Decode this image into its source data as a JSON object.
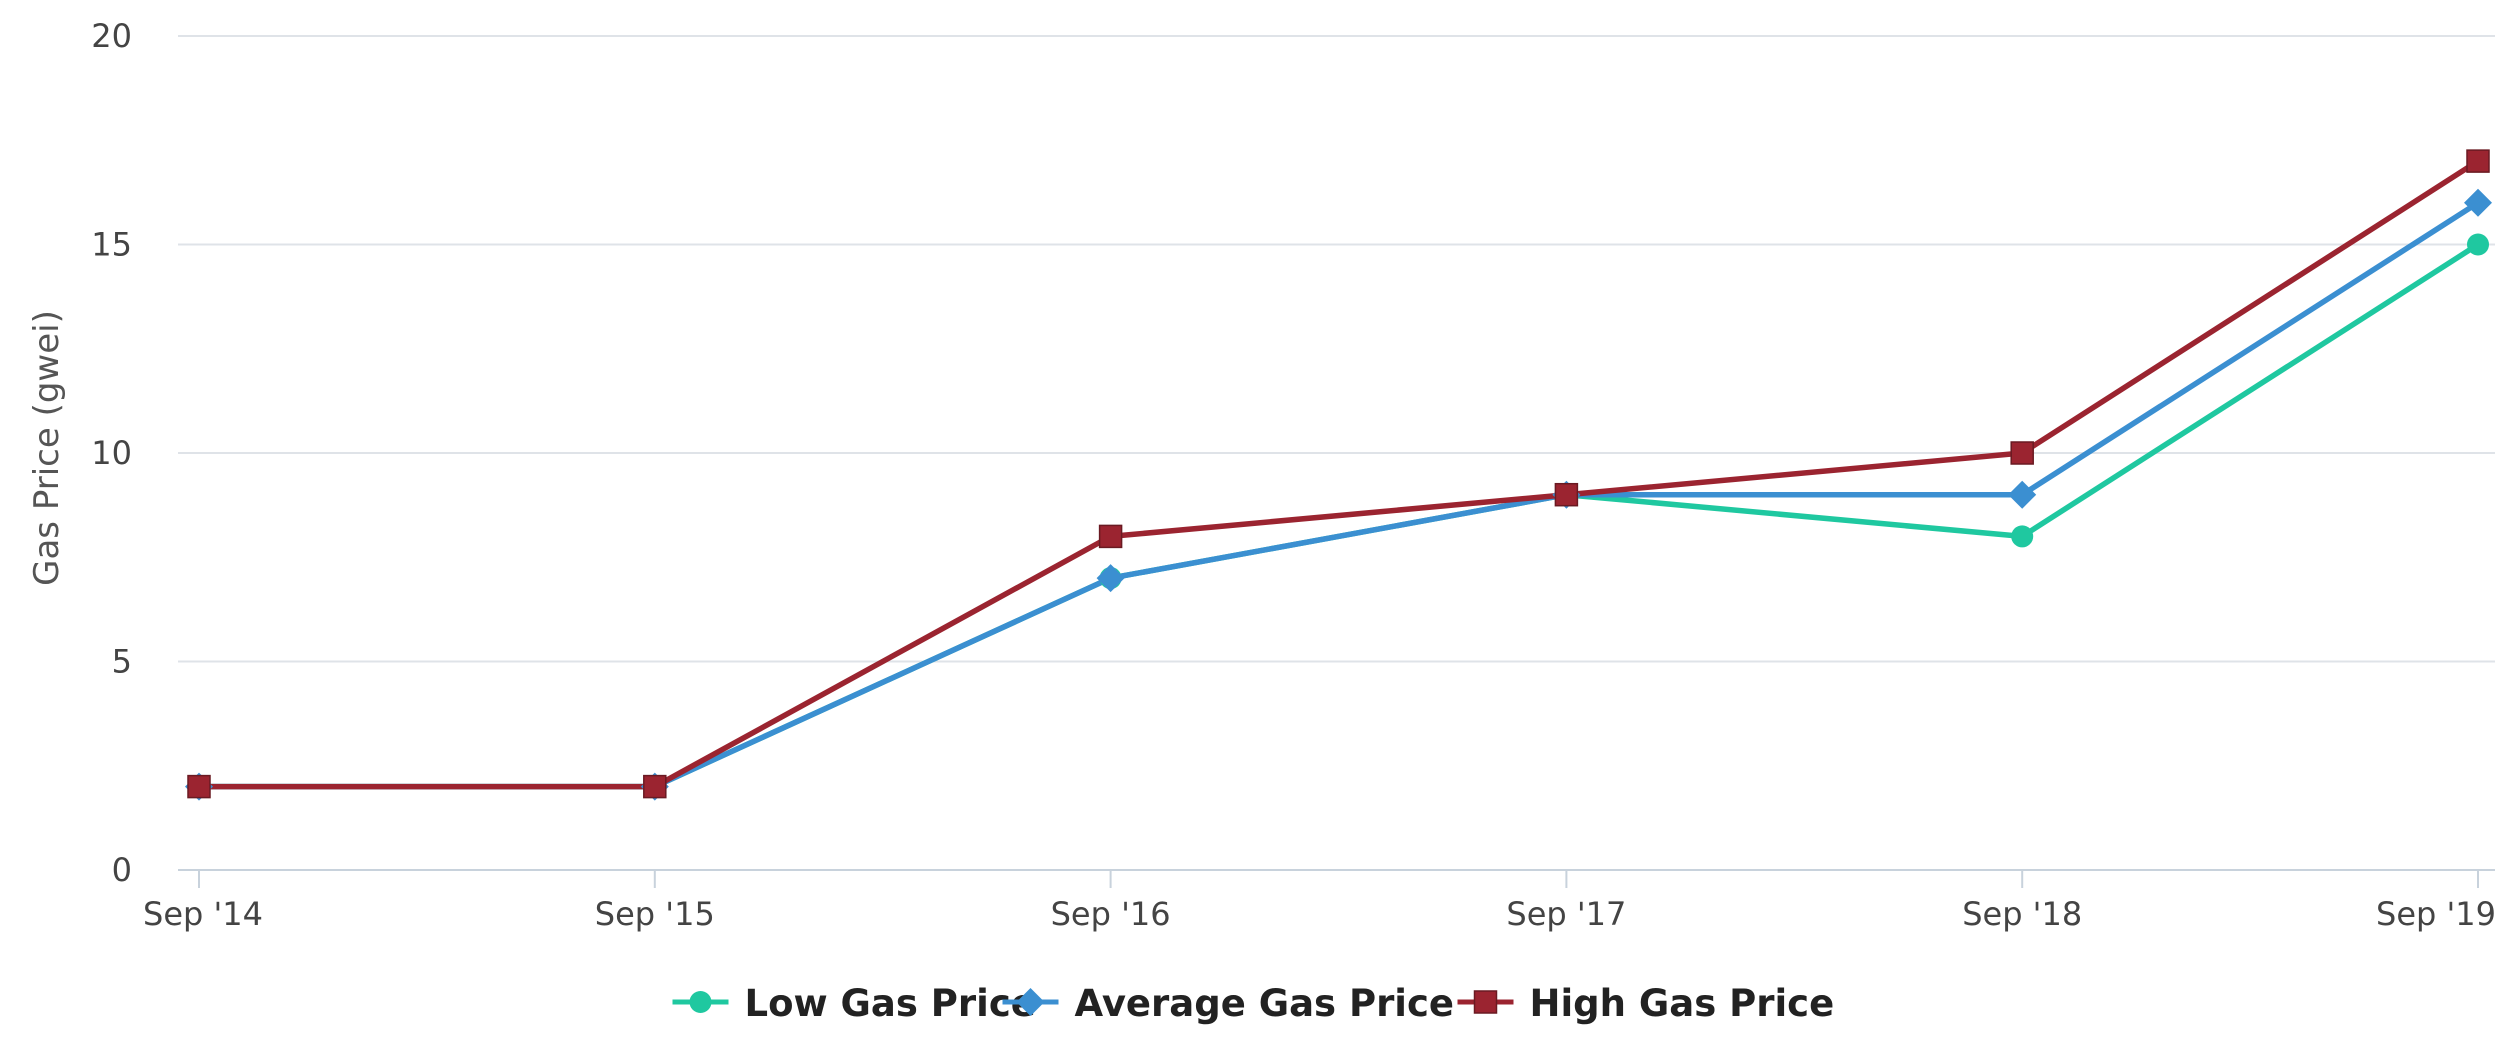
{
  "chart_data": {
    "type": "line",
    "title": "",
    "xlabel": "",
    "ylabel": "Gas Price (gwei)",
    "categories": [
      "Sep '14",
      "Sep '15",
      "Sep '16",
      "Sep '17",
      "Sep '18",
      "Sep '19"
    ],
    "y_ticks": [
      "0",
      "5",
      "10",
      "15",
      "20"
    ],
    "ylim": [
      0,
      20
    ],
    "grid": true,
    "legend_position": "bottom-center",
    "series": [
      {
        "name": "Low Gas Price",
        "values": [
          2,
          2,
          7,
          9,
          8,
          15
        ],
        "color": "#1fc8a0",
        "marker": "circle"
      },
      {
        "name": "Average Gas Price",
        "values": [
          2,
          2,
          7,
          9,
          9,
          16
        ],
        "color": "#3b8fd1",
        "marker": "diamond"
      },
      {
        "name": "High Gas Price",
        "values": [
          2,
          2,
          8,
          9,
          10,
          17
        ],
        "color": "#9b2430",
        "marker": "square"
      }
    ]
  }
}
